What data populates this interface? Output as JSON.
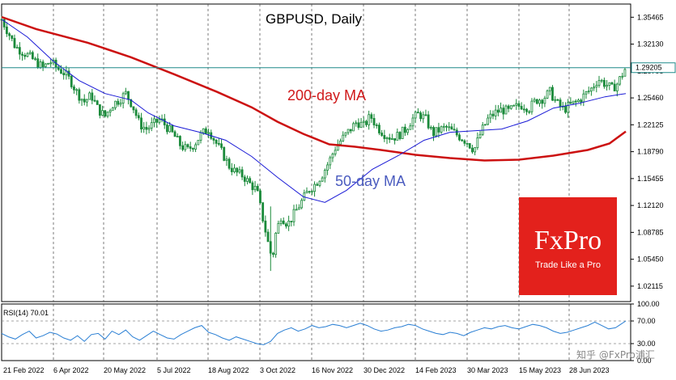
{
  "chart_data": [
    {
      "type": "candlestick",
      "title": "GBPUSD, Daily",
      "current_price_label": "1.29205",
      "y_ticks": [
        "1.35465",
        "1.32130",
        "1.28795",
        "1.25460",
        "1.22125",
        "1.18790",
        "1.15455",
        "1.12120",
        "1.08785",
        "1.05450",
        "1.02115"
      ],
      "ylim": [
        1.002,
        1.371
      ],
      "x_ticks": [
        "21 Feb 2022",
        "6 Apr 2022",
        "20 May 2022",
        "5 Jul 2022",
        "18 Aug 2022",
        "3 Oct 2022",
        "16 Nov 2022",
        "30 Dec 2022",
        "14 Feb 2023",
        "30 Mar 2023",
        "15 May 2023",
        "28 Jun 2023"
      ],
      "annotations": [
        {
          "text": "200-day MA",
          "color": "#d0191a"
        },
        {
          "text": "50-day MA",
          "color": "#4a5bbf"
        }
      ],
      "close_path": [
        [
          0,
          1.352
        ],
        [
          8,
          1.335
        ],
        [
          16,
          1.318
        ],
        [
          24,
          1.312
        ],
        [
          32,
          1.306
        ],
        [
          40,
          1.299
        ],
        [
          48,
          1.292
        ],
        [
          56,
          1.3
        ],
        [
          64,
          1.292
        ],
        [
          72,
          1.286
        ],
        [
          80,
          1.276
        ],
        [
          88,
          1.26
        ],
        [
          96,
          1.25
        ],
        [
          104,
          1.258
        ],
        [
          112,
          1.24
        ],
        [
          120,
          1.232
        ],
        [
          128,
          1.246
        ],
        [
          136,
          1.252
        ],
        [
          144,
          1.26
        ],
        [
          152,
          1.245
        ],
        [
          160,
          1.222
        ],
        [
          168,
          1.216
        ],
        [
          176,
          1.222
        ],
        [
          184,
          1.228
        ],
        [
          192,
          1.218
        ],
        [
          200,
          1.208
        ],
        [
          208,
          1.195
        ],
        [
          216,
          1.19
        ],
        [
          224,
          1.198
        ],
        [
          232,
          1.21
        ],
        [
          240,
          1.216
        ],
        [
          248,
          1.2
        ],
        [
          256,
          1.186
        ],
        [
          264,
          1.17
        ],
        [
          272,
          1.162
        ],
        [
          280,
          1.158
        ],
        [
          288,
          1.148
        ],
        [
          296,
          1.14
        ],
        [
          304,
          1.1
        ],
        [
          310,
          1.07
        ],
        [
          314,
          1.055
        ],
        [
          318,
          1.086
        ],
        [
          324,
          1.108
        ],
        [
          332,
          1.098
        ],
        [
          340,
          1.112
        ],
        [
          348,
          1.126
        ],
        [
          356,
          1.14
        ],
        [
          364,
          1.148
        ],
        [
          372,
          1.16
        ],
        [
          380,
          1.176
        ],
        [
          388,
          1.195
        ],
        [
          396,
          1.205
        ],
        [
          404,
          1.215
        ],
        [
          412,
          1.225
        ],
        [
          420,
          1.22
        ],
        [
          428,
          1.232
        ],
        [
          436,
          1.218
        ],
        [
          444,
          1.21
        ],
        [
          452,
          1.205
        ],
        [
          460,
          1.208
        ],
        [
          468,
          1.215
        ],
        [
          476,
          1.228
        ],
        [
          484,
          1.235
        ],
        [
          492,
          1.228
        ],
        [
          500,
          1.21
        ],
        [
          508,
          1.215
        ],
        [
          516,
          1.218
        ],
        [
          524,
          1.212
        ],
        [
          532,
          1.206
        ],
        [
          540,
          1.2
        ],
        [
          548,
          1.19
        ],
        [
          556,
          1.212
        ],
        [
          564,
          1.228
        ],
        [
          572,
          1.236
        ],
        [
          580,
          1.24
        ],
        [
          588,
          1.238
        ],
        [
          596,
          1.243
        ],
        [
          604,
          1.246
        ],
        [
          612,
          1.242
        ],
        [
          620,
          1.252
        ],
        [
          628,
          1.254
        ],
        [
          636,
          1.262
        ],
        [
          644,
          1.248
        ],
        [
          652,
          1.24
        ],
        [
          660,
          1.246
        ],
        [
          668,
          1.25
        ],
        [
          676,
          1.258
        ],
        [
          684,
          1.266
        ],
        [
          692,
          1.278
        ],
        [
          700,
          1.272
        ],
        [
          708,
          1.266
        ],
        [
          714,
          1.272
        ],
        [
          718,
          1.28
        ],
        [
          724,
          1.292
        ]
      ],
      "series": [
        {
          "name": "200-day MA",
          "color": "#cc1111",
          "points": [
            [
              0,
              1.355
            ],
            [
              40,
              1.34
            ],
            [
              100,
              1.323
            ],
            [
              150,
              1.305
            ],
            [
              200,
              1.284
            ],
            [
              250,
              1.262
            ],
            [
              290,
              1.243
            ],
            [
              320,
              1.225
            ],
            [
              350,
              1.21
            ],
            [
              380,
              1.197
            ],
            [
              410,
              1.194
            ],
            [
              440,
              1.19
            ],
            [
              480,
              1.184
            ],
            [
              520,
              1.18
            ],
            [
              560,
              1.177
            ],
            [
              600,
              1.178
            ],
            [
              640,
              1.183
            ],
            [
              680,
              1.19
            ],
            [
              705,
              1.198
            ],
            [
              724,
              1.213
            ]
          ]
        },
        {
          "name": "50-day MA",
          "color": "#1a1ad6",
          "points": [
            [
              0,
              1.352
            ],
            [
              30,
              1.33
            ],
            [
              60,
              1.3
            ],
            [
              90,
              1.276
            ],
            [
              120,
              1.26
            ],
            [
              150,
              1.252
            ],
            [
              170,
              1.236
            ],
            [
              200,
              1.22
            ],
            [
              230,
              1.212
            ],
            [
              260,
              1.202
            ],
            [
              290,
              1.182
            ],
            [
              320,
              1.156
            ],
            [
              350,
              1.132
            ],
            [
              375,
              1.125
            ],
            [
              400,
              1.14
            ],
            [
              430,
              1.166
            ],
            [
              460,
              1.183
            ],
            [
              490,
              1.202
            ],
            [
              520,
              1.212
            ],
            [
              550,
              1.214
            ],
            [
              580,
              1.216
            ],
            [
              610,
              1.226
            ],
            [
              640,
              1.242
            ],
            [
              670,
              1.248
            ],
            [
              700,
              1.256
            ],
            [
              724,
              1.26
            ]
          ]
        }
      ]
    },
    {
      "type": "line",
      "title": "RSI(14) 70.01",
      "y_ticks": [
        "100.00",
        "70.00",
        "30.00",
        "0.00"
      ],
      "ylim": [
        0,
        100
      ],
      "series": [
        {
          "name": "RSI(14)",
          "color": "#2a7fd4",
          "points": [
            [
              0,
              48
            ],
            [
              8,
              42
            ],
            [
              16,
              38
            ],
            [
              24,
              46
            ],
            [
              32,
              52
            ],
            [
              40,
              40
            ],
            [
              48,
              44
            ],
            [
              56,
              50
            ],
            [
              64,
              47
            ],
            [
              72,
              40
            ],
            [
              80,
              36
            ],
            [
              88,
              44
            ],
            [
              96,
              34
            ],
            [
              104,
              46
            ],
            [
              112,
              48
            ],
            [
              120,
              38
            ],
            [
              128,
              52
            ],
            [
              136,
              46
            ],
            [
              144,
              54
            ],
            [
              152,
              42
            ],
            [
              160,
              36
            ],
            [
              168,
              44
            ],
            [
              176,
              52
            ],
            [
              184,
              46
            ],
            [
              192,
              40
            ],
            [
              200,
              38
            ],
            [
              208,
              46
            ],
            [
              216,
              52
            ],
            [
              224,
              58
            ],
            [
              232,
              62
            ],
            [
              240,
              50
            ],
            [
              248,
              46
            ],
            [
              256,
              40
            ],
            [
              264,
              36
            ],
            [
              272,
              42
            ],
            [
              280,
              38
            ],
            [
              288,
              34
            ],
            [
              296,
              30
            ],
            [
              304,
              28
            ],
            [
              312,
              34
            ],
            [
              320,
              48
            ],
            [
              328,
              54
            ],
            [
              336,
              58
            ],
            [
              344,
              52
            ],
            [
              352,
              56
            ],
            [
              360,
              62
            ],
            [
              368,
              58
            ],
            [
              376,
              60
            ],
            [
              384,
              64
            ],
            [
              392,
              62
            ],
            [
              400,
              58
            ],
            [
              408,
              62
            ],
            [
              416,
              66
            ],
            [
              424,
              62
            ],
            [
              432,
              56
            ],
            [
              440,
              52
            ],
            [
              448,
              54
            ],
            [
              456,
              58
            ],
            [
              464,
              60
            ],
            [
              472,
              64
            ],
            [
              480,
              62
            ],
            [
              488,
              56
            ],
            [
              496,
              52
            ],
            [
              504,
              48
            ],
            [
              512,
              46
            ],
            [
              520,
              50
            ],
            [
              528,
              48
            ],
            [
              536,
              44
            ],
            [
              544,
              50
            ],
            [
              552,
              54
            ],
            [
              560,
              58
            ],
            [
              568,
              56
            ],
            [
              576,
              60
            ],
            [
              584,
              62
            ],
            [
              592,
              58
            ],
            [
              600,
              56
            ],
            [
              608,
              60
            ],
            [
              616,
              64
            ],
            [
              624,
              62
            ],
            [
              632,
              58
            ],
            [
              640,
              52
            ],
            [
              648,
              48
            ],
            [
              656,
              50
            ],
            [
              664,
              54
            ],
            [
              672,
              58
            ],
            [
              680,
              62
            ],
            [
              688,
              68
            ],
            [
              696,
              62
            ],
            [
              704,
              56
            ],
            [
              712,
              58
            ],
            [
              718,
              64
            ],
            [
              724,
              70
            ]
          ]
        }
      ]
    }
  ],
  "brand": {
    "name": "FxPro",
    "tagline": "Trade Like a Pro"
  },
  "watermark": "知乎 @FxPro浦汇"
}
